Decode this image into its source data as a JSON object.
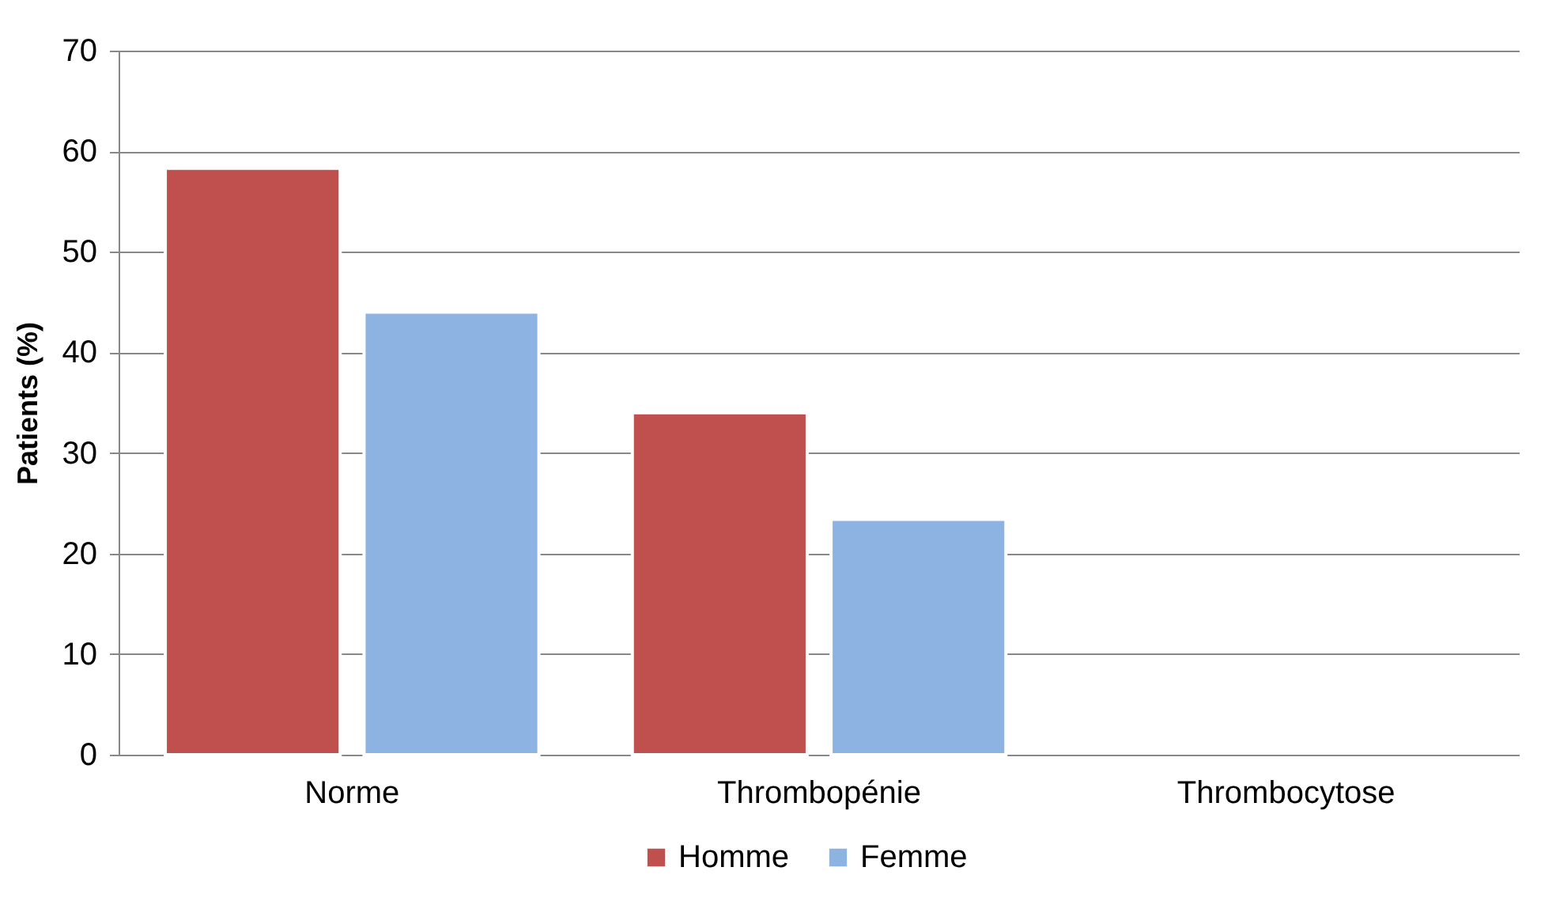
{
  "chart_data": {
    "type": "bar",
    "ylabel": "Patients (%)",
    "categories": [
      "Norme",
      "Thrombopénie",
      "Thrombocytose"
    ],
    "series": [
      {
        "name": "Homme",
        "color": "#c0504d",
        "values": [
          58.3,
          34.0,
          null
        ]
      },
      {
        "name": "Femme",
        "color": "#8db3e2",
        "values": [
          44.0,
          23.4,
          null
        ]
      }
    ],
    "ylim": [
      0,
      70
    ],
    "yticks": [
      0,
      10,
      20,
      30,
      40,
      50,
      60,
      70
    ],
    "grid": "y",
    "legend": "bottom"
  }
}
